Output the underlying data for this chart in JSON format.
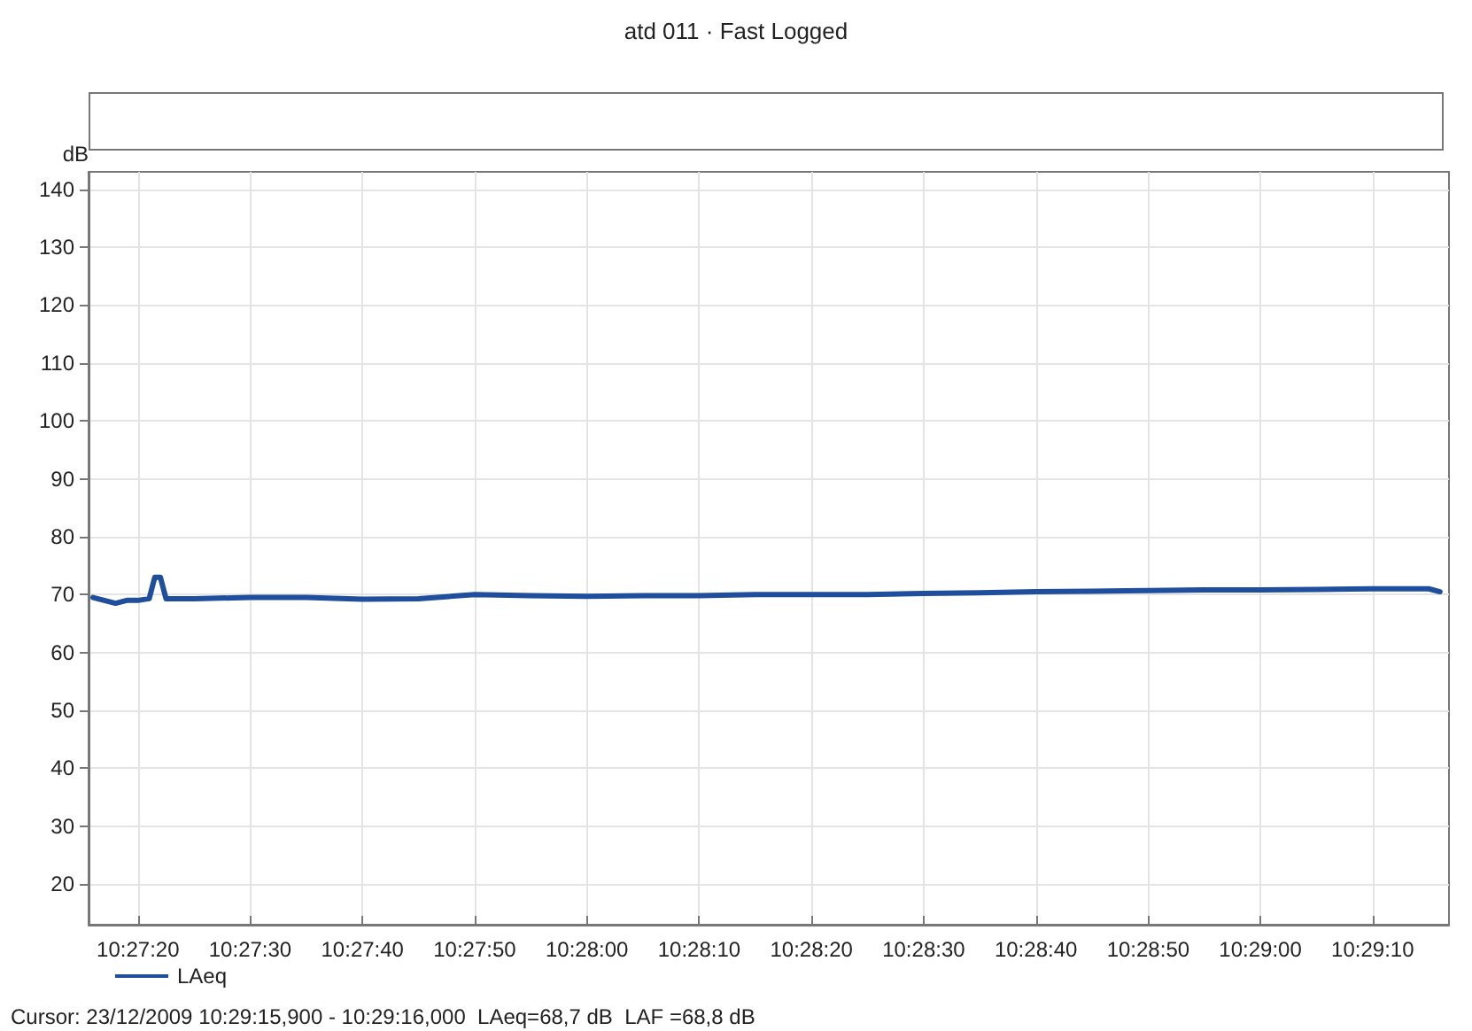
{
  "chart_data": {
    "type": "line",
    "title": "atd 011 · Fast Logged",
    "ylabel": "dB",
    "annotations": [
      "Cursor: 23/12/2009 10:29:15,900 - 10:29:16,000  LAeq=68,7 dB  LAF =68,8 dB"
    ],
    "x": [
      10.454444,
      10.454722,
      10.455,
      10.455278,
      10.455556,
      10.455833,
      10.455972,
      10.456111,
      10.45625,
      10.456944,
      10.458333,
      10.459722,
      10.461111,
      10.4625,
      10.463889,
      10.465278,
      10.466667,
      10.468056,
      10.469444,
      10.470833,
      10.472222,
      10.473611,
      10.475,
      10.476389,
      10.477778,
      10.479167,
      10.480556,
      10.481944,
      10.483333,
      10.484722,
      10.486111,
      10.4875,
      10.487778
    ],
    "series": [
      {
        "name": "LAeq",
        "color": "#1f4e9c",
        "values": [
          69.5,
          69,
          68.5,
          69,
          69,
          69.3,
          73,
          73,
          69.3,
          69.3,
          69.5,
          69.5,
          69.2,
          69.3,
          70,
          69.8,
          69.7,
          69.8,
          69.8,
          70,
          70,
          70,
          70.2,
          70.3,
          70.5,
          70.6,
          70.7,
          70.8,
          70.8,
          70.9,
          71,
          71,
          70.5
        ]
      }
    ],
    "xlim": [
      10.454333,
      10.488
    ],
    "xticks": [
      {
        "value": 10.455556,
        "label": "10:27:20"
      },
      {
        "value": 10.458333,
        "label": "10:27:30"
      },
      {
        "value": 10.461111,
        "label": "10:27:40"
      },
      {
        "value": 10.463889,
        "label": "10:27:50"
      },
      {
        "value": 10.466667,
        "label": "10:28:00"
      },
      {
        "value": 10.469444,
        "label": "10:28:10"
      },
      {
        "value": 10.472222,
        "label": "10:28:20"
      },
      {
        "value": 10.475,
        "label": "10:28:30"
      },
      {
        "value": 10.477778,
        "label": "10:28:40"
      },
      {
        "value": 10.480556,
        "label": "10:28:50"
      },
      {
        "value": 10.483333,
        "label": "10:29:00"
      },
      {
        "value": 10.486111,
        "label": "10:29:10"
      }
    ],
    "ylim": [
      13,
      143
    ],
    "yticks": [
      20,
      30,
      40,
      50,
      60,
      70,
      80,
      90,
      100,
      110,
      120,
      130,
      140
    ],
    "grid": true,
    "legend": "bottom left",
    "marker": "none",
    "line_style": "solid"
  }
}
